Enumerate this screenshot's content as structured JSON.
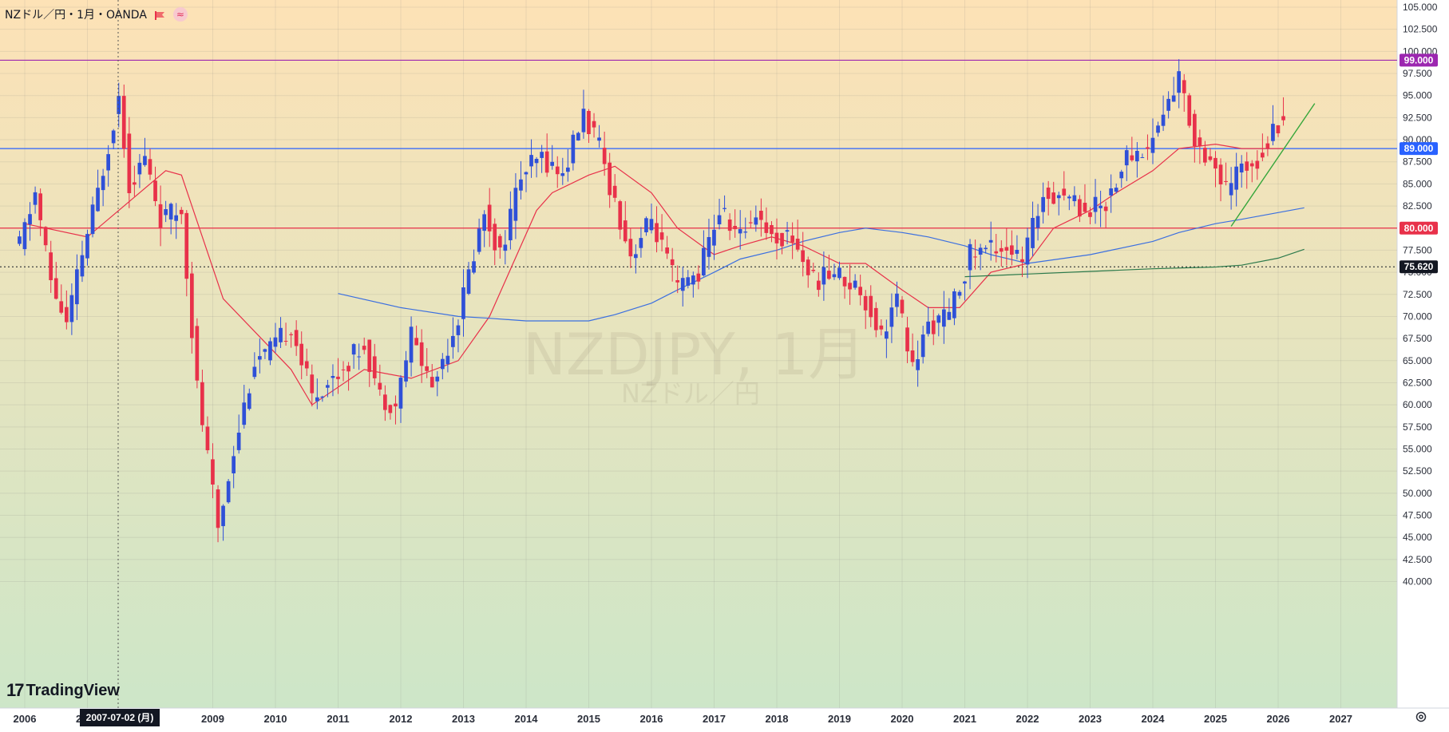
{
  "legend": {
    "title": "NZドル／円・1月・OANDA",
    "flag_icon": "flag-icon",
    "indicator_icon": "wave-icon",
    "indicator_glyph": "≈"
  },
  "watermark": {
    "symbol": "NZDJPY, 1月",
    "name": "NZドル／円"
  },
  "brand": {
    "logo_text": "TradingView",
    "logo_mark": "17"
  },
  "crosshair_date": "2007-07-02 (月)",
  "settings_icon": "gear-icon",
  "colors": {
    "bg_top": "#fde2b6",
    "bg_bottom": "#cde6c8",
    "up": "#2f50d8",
    "down": "#e8314a",
    "ma_short": "#e8314a",
    "ma_mid": "#3b6fe0",
    "ma_long": "#2c7a4b",
    "trendline": "#35a63a"
  },
  "chart_data": {
    "type": "candlestick",
    "title": "NZドル／円・1月・OANDA",
    "ylim": [
      39,
      106
    ],
    "y_ticks": [
      "105.000",
      "102.500",
      "100.000",
      "97.500",
      "95.000",
      "92.500",
      "90.000",
      "87.500",
      "85.000",
      "82.500",
      "80.000",
      "77.500",
      "75.000",
      "72.500",
      "70.000",
      "67.500",
      "65.000",
      "62.500",
      "60.000",
      "57.500",
      "55.000",
      "52.500",
      "50.000",
      "47.500",
      "45.000",
      "42.500",
      "40.000"
    ],
    "x_ticks": [
      "2006",
      "2007",
      "2009",
      "2010",
      "2011",
      "2012",
      "2013",
      "2014",
      "2015",
      "2016",
      "2017",
      "2018",
      "2019",
      "2020",
      "2021",
      "2022",
      "2023",
      "2024",
      "2025",
      "2026",
      "2027"
    ],
    "horizontal_lines": [
      {
        "value": 99.0,
        "label": "99.000",
        "color": "#9c27b0"
      },
      {
        "value": 89.0,
        "label": "89.000",
        "color": "#2962ff"
      },
      {
        "value": 80.0,
        "label": "80.000",
        "color": "#e8314a"
      },
      {
        "value": 75.62,
        "label": "75.620",
        "color": "#131722",
        "style": "dotted"
      }
    ],
    "anchors": [
      {
        "date": "2005-12",
        "value": 78
      },
      {
        "date": "2006-03",
        "value": 84
      },
      {
        "date": "2006-06",
        "value": 74
      },
      {
        "date": "2006-09",
        "value": 69
      },
      {
        "date": "2006-12",
        "value": 77
      },
      {
        "date": "2007-03",
        "value": 84
      },
      {
        "date": "2007-07",
        "value": 95
      },
      {
        "date": "2007-09",
        "value": 85
      },
      {
        "date": "2007-12",
        "value": 88
      },
      {
        "date": "2008-03",
        "value": 81
      },
      {
        "date": "2008-07",
        "value": 82
      },
      {
        "date": "2008-10",
        "value": 62
      },
      {
        "date": "2009-02",
        "value": 46
      },
      {
        "date": "2009-05",
        "value": 55
      },
      {
        "date": "2009-09",
        "value": 65
      },
      {
        "date": "2009-12",
        "value": 66
      },
      {
        "date": "2010-04",
        "value": 69
      },
      {
        "date": "2010-08",
        "value": 61
      },
      {
        "date": "2010-12",
        "value": 63
      },
      {
        "date": "2011-06",
        "value": 67
      },
      {
        "date": "2011-09",
        "value": 61
      },
      {
        "date": "2011-12",
        "value": 60
      },
      {
        "date": "2012-03",
        "value": 68
      },
      {
        "date": "2012-07",
        "value": 62
      },
      {
        "date": "2012-12",
        "value": 70
      },
      {
        "date": "2013-05",
        "value": 82
      },
      {
        "date": "2013-08",
        "value": 77
      },
      {
        "date": "2013-12",
        "value": 86
      },
      {
        "date": "2014-04",
        "value": 88
      },
      {
        "date": "2014-08",
        "value": 86
      },
      {
        "date": "2014-12",
        "value": 93
      },
      {
        "date": "2015-03",
        "value": 89
      },
      {
        "date": "2015-06",
        "value": 83
      },
      {
        "date": "2015-09",
        "value": 77
      },
      {
        "date": "2016-01",
        "value": 81
      },
      {
        "date": "2016-06",
        "value": 73
      },
      {
        "date": "2016-10",
        "value": 75
      },
      {
        "date": "2017-02",
        "value": 82
      },
      {
        "date": "2017-06",
        "value": 79
      },
      {
        "date": "2017-09",
        "value": 82
      },
      {
        "date": "2017-12",
        "value": 79
      },
      {
        "date": "2018-04",
        "value": 79
      },
      {
        "date": "2018-08",
        "value": 74
      },
      {
        "date": "2018-12",
        "value": 75
      },
      {
        "date": "2019-05",
        "value": 73
      },
      {
        "date": "2019-09",
        "value": 68
      },
      {
        "date": "2019-12",
        "value": 72
      },
      {
        "date": "2020-03",
        "value": 64
      },
      {
        "date": "2020-06",
        "value": 69
      },
      {
        "date": "2020-10",
        "value": 70
      },
      {
        "date": "2021-02",
        "value": 77
      },
      {
        "date": "2021-06",
        "value": 78
      },
      {
        "date": "2021-09",
        "value": 78
      },
      {
        "date": "2021-12",
        "value": 76
      },
      {
        "date": "2022-04",
        "value": 84
      },
      {
        "date": "2022-08",
        "value": 84
      },
      {
        "date": "2022-12",
        "value": 82
      },
      {
        "date": "2023-04",
        "value": 83
      },
      {
        "date": "2023-08",
        "value": 88
      },
      {
        "date": "2023-12",
        "value": 89
      },
      {
        "date": "2024-03",
        "value": 93
      },
      {
        "date": "2024-06",
        "value": 97
      },
      {
        "date": "2024-09",
        "value": 90
      },
      {
        "date": "2024-12",
        "value": 88
      },
      {
        "date": "2025-03",
        "value": 84
      },
      {
        "date": "2025-06",
        "value": 87
      },
      {
        "date": "2025-09",
        "value": 88
      },
      {
        "date": "2025-12",
        "value": 91
      },
      {
        "date": "2026-02",
        "value": 93
      }
    ],
    "moving_averages": [
      {
        "color": "#e8314a",
        "points": [
          {
            "date": "2006-01",
            "value": 80.5
          },
          {
            "date": "2007-01",
            "value": 79
          },
          {
            "date": "2008-04",
            "value": 86.5
          },
          {
            "date": "2008-07",
            "value": 86
          },
          {
            "date": "2009-03",
            "value": 72
          },
          {
            "date": "2010-04",
            "value": 64
          },
          {
            "date": "2010-08",
            "value": 60
          },
          {
            "date": "2011-06",
            "value": 64
          },
          {
            "date": "2012-03",
            "value": 63
          },
          {
            "date": "2012-12",
            "value": 65
          },
          {
            "date": "2013-06",
            "value": 70
          },
          {
            "date": "2014-03",
            "value": 82
          },
          {
            "date": "2014-06",
            "value": 84
          },
          {
            "date": "2015-01",
            "value": 86
          },
          {
            "date": "2015-06",
            "value": 87
          },
          {
            "date": "2016-01",
            "value": 84
          },
          {
            "date": "2016-06",
            "value": 80
          },
          {
            "date": "2017-01",
            "value": 77
          },
          {
            "date": "2017-06",
            "value": 78
          },
          {
            "date": "2017-12",
            "value": 79
          },
          {
            "date": "2018-06",
            "value": 78
          },
          {
            "date": "2019-01",
            "value": 76
          },
          {
            "date": "2019-06",
            "value": 76
          },
          {
            "date": "2020-01",
            "value": 73
          },
          {
            "date": "2020-06",
            "value": 71
          },
          {
            "date": "2020-12",
            "value": 71
          },
          {
            "date": "2021-06",
            "value": 75
          },
          {
            "date": "2022-01",
            "value": 76
          },
          {
            "date": "2022-06",
            "value": 80
          },
          {
            "date": "2023-01",
            "value": 82
          },
          {
            "date": "2023-06",
            "value": 84
          },
          {
            "date": "2024-01",
            "value": 86.5
          },
          {
            "date": "2024-06",
            "value": 89
          },
          {
            "date": "2025-01",
            "value": 89.5
          },
          {
            "date": "2025-06",
            "value": 89
          },
          {
            "date": "2026-02",
            "value": 89
          }
        ]
      },
      {
        "color": "#3b6fe0",
        "points": [
          {
            "date": "2011-01",
            "value": 72.6
          },
          {
            "date": "2012-01",
            "value": 71
          },
          {
            "date": "2012-12",
            "value": 70
          },
          {
            "date": "2013-06",
            "value": 69.8
          },
          {
            "date": "2014-01",
            "value": 69.5
          },
          {
            "date": "2015-01",
            "value": 69.5
          },
          {
            "date": "2015-06",
            "value": 70.2
          },
          {
            "date": "2016-01",
            "value": 71.5
          },
          {
            "date": "2016-06",
            "value": 73
          },
          {
            "date": "2017-01",
            "value": 75
          },
          {
            "date": "2017-06",
            "value": 76.5
          },
          {
            "date": "2018-01",
            "value": 77.5
          },
          {
            "date": "2018-06",
            "value": 78.5
          },
          {
            "date": "2019-01",
            "value": 79.5
          },
          {
            "date": "2019-06",
            "value": 80
          },
          {
            "date": "2020-01",
            "value": 79.5
          },
          {
            "date": "2020-06",
            "value": 79
          },
          {
            "date": "2021-01",
            "value": 78
          },
          {
            "date": "2021-06",
            "value": 77
          },
          {
            "date": "2022-01",
            "value": 76
          },
          {
            "date": "2023-01",
            "value": 77
          },
          {
            "date": "2024-01",
            "value": 78.5
          },
          {
            "date": "2024-06",
            "value": 79.5
          },
          {
            "date": "2025-01",
            "value": 80.5
          },
          {
            "date": "2025-06",
            "value": 81
          },
          {
            "date": "2026-06",
            "value": 82.3
          }
        ]
      },
      {
        "color": "#2c7a4b",
        "points": [
          {
            "date": "2021-01",
            "value": 74.5
          },
          {
            "date": "2022-01",
            "value": 74.8
          },
          {
            "date": "2023-01",
            "value": 75.1
          },
          {
            "date": "2024-01",
            "value": 75.4
          },
          {
            "date": "2025-01",
            "value": 75.6
          },
          {
            "date": "2025-06",
            "value": 75.8
          },
          {
            "date": "2026-01",
            "value": 76.6
          },
          {
            "date": "2026-06",
            "value": 77.6
          }
        ]
      }
    ],
    "trendline": [
      {
        "date": "2025-04",
        "value": 80.2
      },
      {
        "date": "2026-08",
        "value": 94.1
      }
    ]
  }
}
